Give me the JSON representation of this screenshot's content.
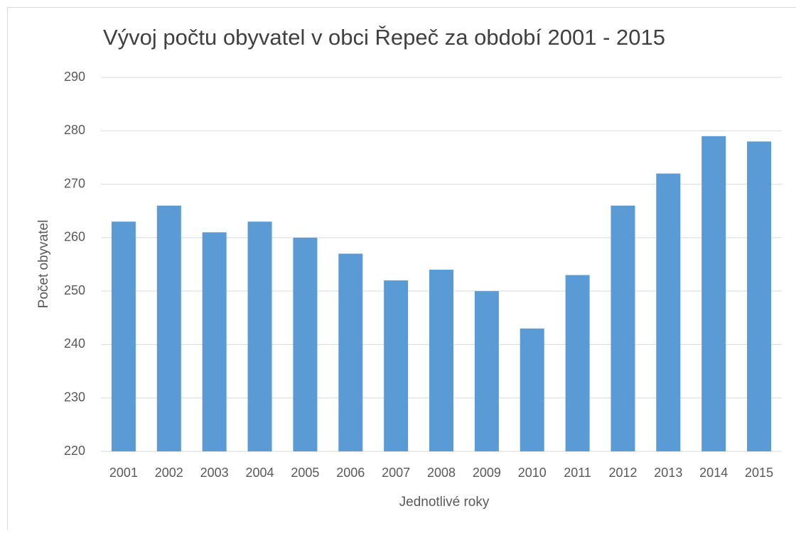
{
  "chart_data": {
    "type": "bar",
    "title": "Vývoj počtu obyvatel v obci Řepeč za období 2001 - 2015",
    "x_label": "Jednotlivé roky",
    "y_label": "Počet obyvatel",
    "categories": [
      "2001",
      "2002",
      "2003",
      "2004",
      "2005",
      "2006",
      "2007",
      "2008",
      "2009",
      "2010",
      "2011",
      "2012",
      "2013",
      "2014",
      "2015"
    ],
    "values": [
      263,
      266,
      261,
      263,
      260,
      257,
      252,
      254,
      250,
      243,
      253,
      266,
      272,
      279,
      278
    ],
    "color": "#5b9bd5",
    "ylim": [
      220,
      290
    ],
    "yticks": [
      220,
      230,
      240,
      250,
      260,
      270,
      280,
      290
    ],
    "grid": true
  }
}
